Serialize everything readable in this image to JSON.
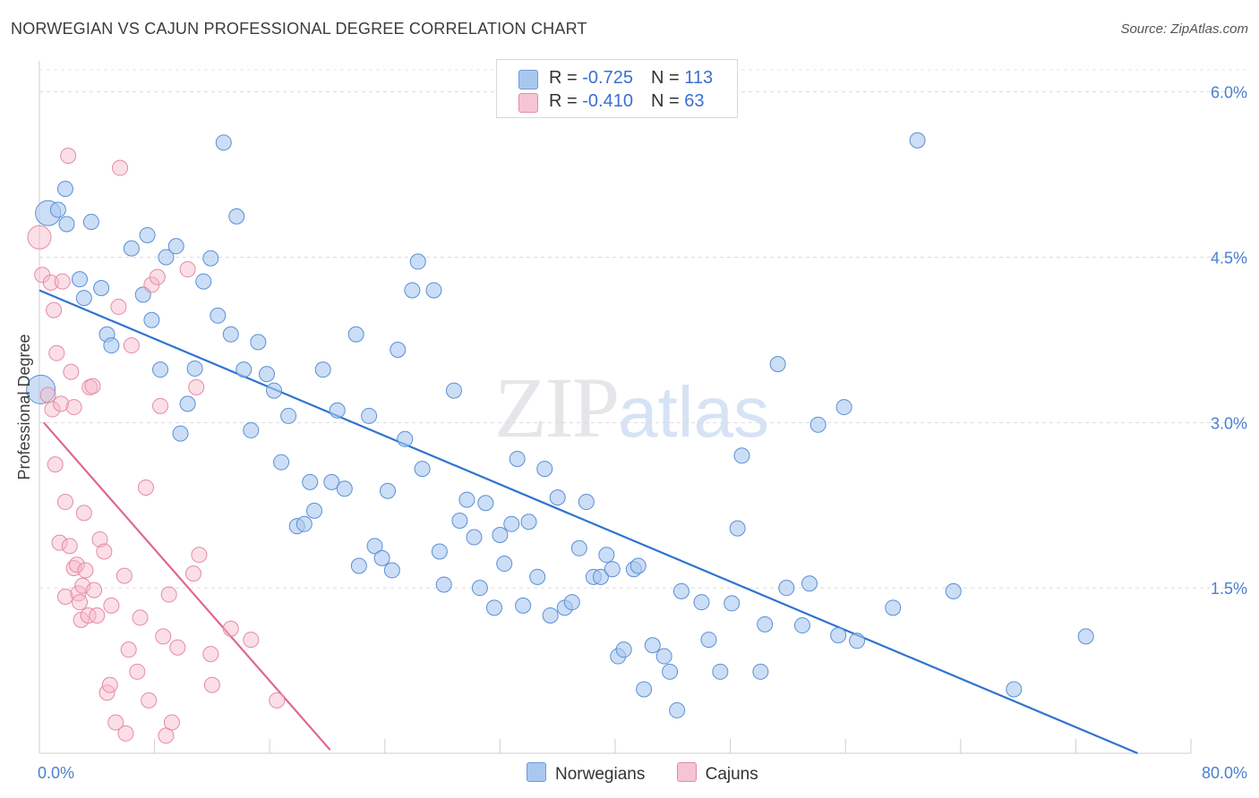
{
  "title": "NORWEGIAN VS CAJUN PROFESSIONAL DEGREE CORRELATION CHART",
  "source": "Source: ZipAtlas.com",
  "watermark": {
    "zip": "ZIP",
    "atlas": "atlas"
  },
  "legend": {
    "rows": [
      {
        "r_label": "R = ",
        "r_value": "-0.725",
        "n_label": "N = ",
        "n_value": "113",
        "color": "#a9c8ef"
      },
      {
        "r_label": "R = ",
        "r_value": "-0.410",
        "n_label": "N = ",
        "n_value": " 63",
        "color": "#f6b8c8"
      }
    ]
  },
  "bottom_legend": [
    {
      "label": "Norwegians",
      "color": "#a9c8ef"
    },
    {
      "label": "Cajuns",
      "color": "#f6b8c8"
    }
  ],
  "chart_data": {
    "type": "scatter",
    "title": "NORWEGIAN VS CAJUN PROFESSIONAL DEGREE CORRELATION CHART",
    "xlabel": "",
    "ylabel": "Professional Degree",
    "xlim": [
      0,
      80
    ],
    "ylim": [
      0,
      6.2
    ],
    "x_tick_labels": [
      "0.0%",
      "80.0%"
    ],
    "y_ticks": [
      1.5,
      3.0,
      4.5,
      6.0
    ],
    "y_tick_labels": [
      "1.5%",
      "3.0%",
      "4.5%",
      "6.0%"
    ],
    "grid": true,
    "colors": {
      "norwegians": "#a9c8ef",
      "norwegians_stroke": "#5b8fd6",
      "norwegians_line": "#2f73d0",
      "cajuns": "#f6b8c8",
      "cajuns_stroke": "#e58aa6",
      "cajuns_line": "#e0668f"
    },
    "series": [
      {
        "name": "Norwegians",
        "r": -0.725,
        "n": 113,
        "trend": {
          "x": [
            0,
            76.3
          ],
          "y": [
            4.2,
            0.0
          ]
        },
        "points": [
          [
            0.6,
            4.9
          ],
          [
            0.1,
            3.3
          ],
          [
            1.8,
            5.12
          ],
          [
            1.9,
            4.8
          ],
          [
            3.6,
            4.82
          ],
          [
            1.3,
            4.93
          ],
          [
            2.8,
            4.3
          ],
          [
            3.1,
            4.13
          ],
          [
            4.3,
            4.22
          ],
          [
            4.7,
            3.8
          ],
          [
            5.0,
            3.7
          ],
          [
            6.4,
            4.58
          ],
          [
            7.2,
            4.16
          ],
          [
            7.5,
            4.7
          ],
          [
            7.8,
            3.93
          ],
          [
            8.4,
            3.48
          ],
          [
            8.8,
            4.5
          ],
          [
            9.5,
            4.6
          ],
          [
            9.8,
            2.9
          ],
          [
            10.3,
            3.17
          ],
          [
            10.8,
            3.49
          ],
          [
            11.4,
            4.28
          ],
          [
            11.9,
            4.49
          ],
          [
            12.4,
            3.97
          ],
          [
            12.8,
            5.54
          ],
          [
            13.3,
            3.8
          ],
          [
            13.7,
            4.87
          ],
          [
            14.2,
            3.48
          ],
          [
            14.7,
            2.93
          ],
          [
            15.2,
            3.73
          ],
          [
            15.8,
            3.44
          ],
          [
            16.3,
            3.29
          ],
          [
            16.8,
            2.64
          ],
          [
            17.3,
            3.06
          ],
          [
            17.9,
            2.06
          ],
          [
            18.4,
            2.08
          ],
          [
            18.8,
            2.46
          ],
          [
            19.1,
            2.2
          ],
          [
            19.7,
            3.48
          ],
          [
            20.3,
            2.46
          ],
          [
            20.7,
            3.11
          ],
          [
            21.2,
            2.4
          ],
          [
            22.0,
            3.8
          ],
          [
            22.2,
            1.7
          ],
          [
            22.9,
            3.06
          ],
          [
            23.3,
            1.88
          ],
          [
            23.8,
            1.77
          ],
          [
            24.2,
            2.38
          ],
          [
            24.5,
            1.66
          ],
          [
            24.9,
            3.66
          ],
          [
            25.4,
            2.85
          ],
          [
            25.9,
            4.2
          ],
          [
            26.3,
            4.46
          ],
          [
            26.6,
            2.58
          ],
          [
            27.4,
            4.2
          ],
          [
            27.8,
            1.83
          ],
          [
            28.1,
            1.53
          ],
          [
            28.8,
            3.29
          ],
          [
            29.2,
            2.11
          ],
          [
            29.7,
            2.3
          ],
          [
            30.2,
            1.96
          ],
          [
            30.6,
            1.5
          ],
          [
            31.0,
            2.27
          ],
          [
            31.6,
            1.32
          ],
          [
            32.0,
            1.98
          ],
          [
            32.3,
            1.72
          ],
          [
            32.8,
            2.08
          ],
          [
            33.2,
            2.67
          ],
          [
            33.6,
            1.34
          ],
          [
            34.0,
            2.1
          ],
          [
            34.6,
            1.6
          ],
          [
            35.1,
            2.58
          ],
          [
            35.5,
            1.25
          ],
          [
            36.0,
            2.32
          ],
          [
            36.5,
            1.32
          ],
          [
            37.0,
            1.37
          ],
          [
            37.5,
            1.86
          ],
          [
            38.0,
            2.28
          ],
          [
            38.5,
            1.6
          ],
          [
            39.0,
            1.6
          ],
          [
            39.4,
            1.8
          ],
          [
            39.8,
            1.67
          ],
          [
            40.2,
            0.88
          ],
          [
            40.6,
            0.94
          ],
          [
            41.3,
            1.67
          ],
          [
            41.6,
            1.7
          ],
          [
            42.0,
            0.58
          ],
          [
            42.6,
            0.98
          ],
          [
            43.4,
            0.88
          ],
          [
            43.8,
            0.74
          ],
          [
            44.3,
            0.39
          ],
          [
            44.6,
            1.47
          ],
          [
            46.0,
            1.37
          ],
          [
            46.5,
            1.03
          ],
          [
            47.3,
            0.74
          ],
          [
            48.1,
            1.36
          ],
          [
            48.5,
            2.04
          ],
          [
            48.8,
            2.7
          ],
          [
            50.1,
            0.74
          ],
          [
            50.4,
            1.17
          ],
          [
            51.3,
            3.53
          ],
          [
            51.9,
            1.5
          ],
          [
            53.0,
            1.16
          ],
          [
            53.5,
            1.54
          ],
          [
            54.1,
            2.98
          ],
          [
            55.5,
            1.07
          ],
          [
            55.9,
            3.14
          ],
          [
            56.8,
            1.02
          ],
          [
            59.3,
            1.32
          ],
          [
            61.0,
            5.56
          ],
          [
            63.5,
            1.47
          ],
          [
            67.7,
            0.58
          ],
          [
            72.7,
            1.06
          ]
        ]
      },
      {
        "name": "Cajuns",
        "r": -0.41,
        "n": 63,
        "trend": {
          "x": [
            0.3,
            20.2
          ],
          "y": [
            3.0,
            0.03
          ]
        },
        "points": [
          [
            0.0,
            4.68
          ],
          [
            0.2,
            4.34
          ],
          [
            0.6,
            3.25
          ],
          [
            0.9,
            3.12
          ],
          [
            0.8,
            4.27
          ],
          [
            1.0,
            4.02
          ],
          [
            1.1,
            2.62
          ],
          [
            1.2,
            3.63
          ],
          [
            1.4,
            1.91
          ],
          [
            1.5,
            3.17
          ],
          [
            1.6,
            4.28
          ],
          [
            1.8,
            1.42
          ],
          [
            1.8,
            2.28
          ],
          [
            2.0,
            5.42
          ],
          [
            2.1,
            1.88
          ],
          [
            2.2,
            3.46
          ],
          [
            2.4,
            3.14
          ],
          [
            2.4,
            1.68
          ],
          [
            2.6,
            1.71
          ],
          [
            2.7,
            1.45
          ],
          [
            2.8,
            1.37
          ],
          [
            2.9,
            1.21
          ],
          [
            3.0,
            1.52
          ],
          [
            3.1,
            2.18
          ],
          [
            3.2,
            1.66
          ],
          [
            3.4,
            1.25
          ],
          [
            3.5,
            3.32
          ],
          [
            3.7,
            3.33
          ],
          [
            3.8,
            1.48
          ],
          [
            4.0,
            1.25
          ],
          [
            4.2,
            1.94
          ],
          [
            4.5,
            1.83
          ],
          [
            4.7,
            0.55
          ],
          [
            4.9,
            0.62
          ],
          [
            5.0,
            1.34
          ],
          [
            5.3,
            0.28
          ],
          [
            5.5,
            4.05
          ],
          [
            5.6,
            5.31
          ],
          [
            5.9,
            1.61
          ],
          [
            6.0,
            0.18
          ],
          [
            6.2,
            0.94
          ],
          [
            6.4,
            3.7
          ],
          [
            6.8,
            0.74
          ],
          [
            7.0,
            1.23
          ],
          [
            7.4,
            2.41
          ],
          [
            7.6,
            0.48
          ],
          [
            7.8,
            4.25
          ],
          [
            8.2,
            4.32
          ],
          [
            8.4,
            3.15
          ],
          [
            8.6,
            1.06
          ],
          [
            8.8,
            0.16
          ],
          [
            9.0,
            1.44
          ],
          [
            9.2,
            0.28
          ],
          [
            9.6,
            0.96
          ],
          [
            10.3,
            4.39
          ],
          [
            10.7,
            1.63
          ],
          [
            10.9,
            3.32
          ],
          [
            11.1,
            1.8
          ],
          [
            11.9,
            0.9
          ],
          [
            12.0,
            0.62
          ],
          [
            13.3,
            1.13
          ],
          [
            14.7,
            1.03
          ],
          [
            16.5,
            0.48
          ]
        ]
      }
    ]
  }
}
